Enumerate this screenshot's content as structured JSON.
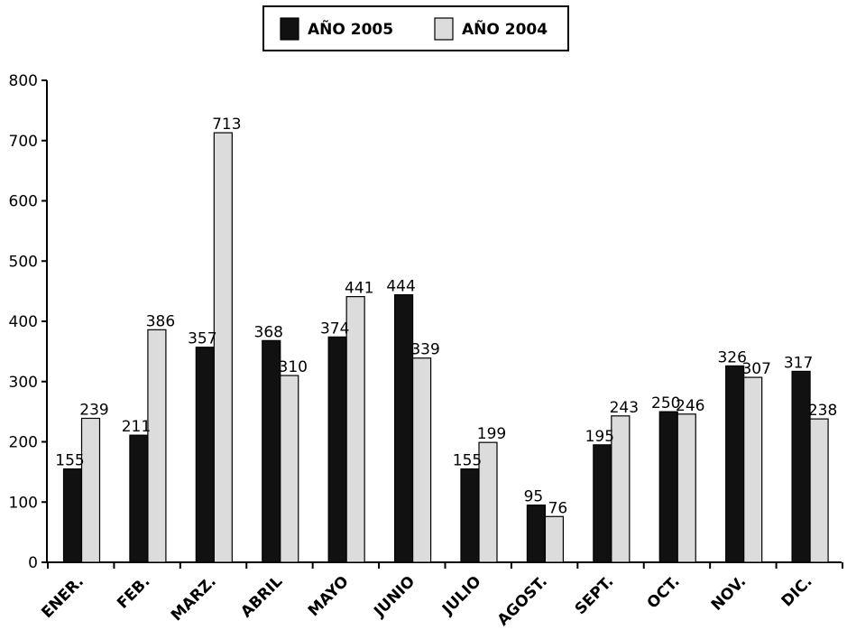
{
  "chart_data": {
    "type": "bar",
    "title": "",
    "xlabel": "",
    "ylabel": "",
    "categories": [
      "ENER.",
      "FEB.",
      "MARZ.",
      "ABRIL",
      "MAYO",
      "JUNIO",
      "JULIO",
      "AGOST.",
      "SEPT.",
      "OCT.",
      "NOV.",
      "DIC."
    ],
    "series": [
      {
        "name": "AÑO 2005",
        "color": "#111111",
        "values": [
          155,
          211,
          357,
          368,
          374,
          444,
          155,
          95,
          195,
          250,
          326,
          317
        ]
      },
      {
        "name": "AÑO 2004",
        "color": "#dcdcdc",
        "values": [
          239,
          386,
          713,
          310,
          441,
          339,
          199,
          76,
          243,
          246,
          307,
          238
        ]
      }
    ],
    "ylim": [
      0,
      800
    ],
    "yticks": [
      0,
      100,
      200,
      300,
      400,
      500,
      600,
      700,
      800
    ],
    "grid": false,
    "legend_position": "top-center"
  }
}
